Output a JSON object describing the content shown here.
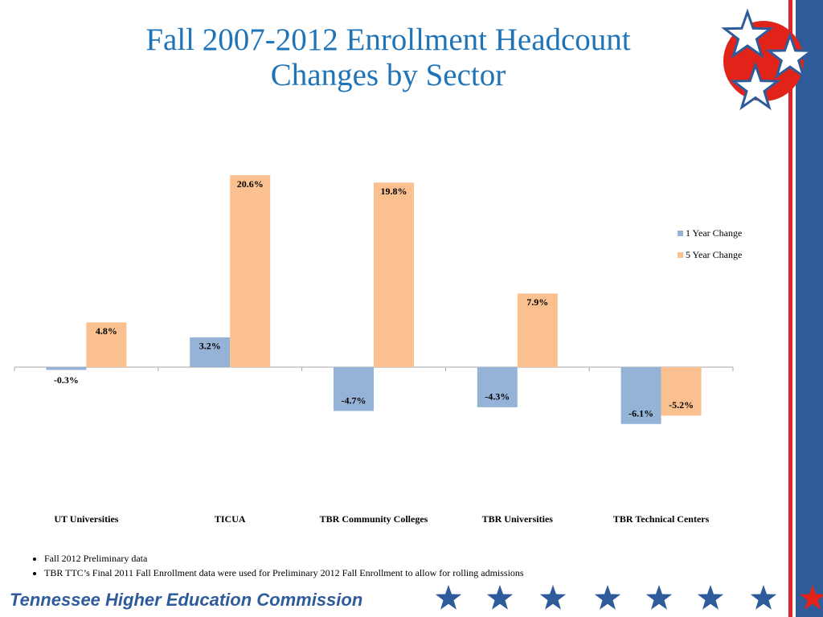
{
  "chart_data": {
    "type": "bar",
    "title": "Fall 2007-2012 Enrollment Headcount Changes by Sector",
    "categories": [
      "UT Universities",
      "TICUA",
      "TBR Community Colleges",
      "TBR Universities",
      "TBR Technical Centers"
    ],
    "series": [
      {
        "name": "1 Year Change",
        "color": "#95b3d7",
        "values": [
          -0.3,
          3.2,
          -4.7,
          -4.3,
          -6.1
        ],
        "value_labels": [
          "-0.3%",
          "3.2%",
          "-4.7%",
          "-4.3%",
          "-6.1%"
        ]
      },
      {
        "name": "5 Year Change",
        "color": "#fac090",
        "values": [
          4.8,
          20.6,
          19.8,
          7.9,
          -5.2
        ],
        "value_labels": [
          "4.8%",
          "20.6%",
          "19.8%",
          "7.9%",
          "-5.2%"
        ]
      }
    ],
    "ylim": [
      -10,
      25
    ],
    "legend": "right"
  },
  "notes": [
    "Fall 2012 Preliminary data",
    "TBR TTC’s Final 2011 Fall Enrollment data were used for Preliminary 2012 Fall Enrollment to allow for rolling admissions"
  ],
  "footer": "Tennessee Higher Education Commission"
}
